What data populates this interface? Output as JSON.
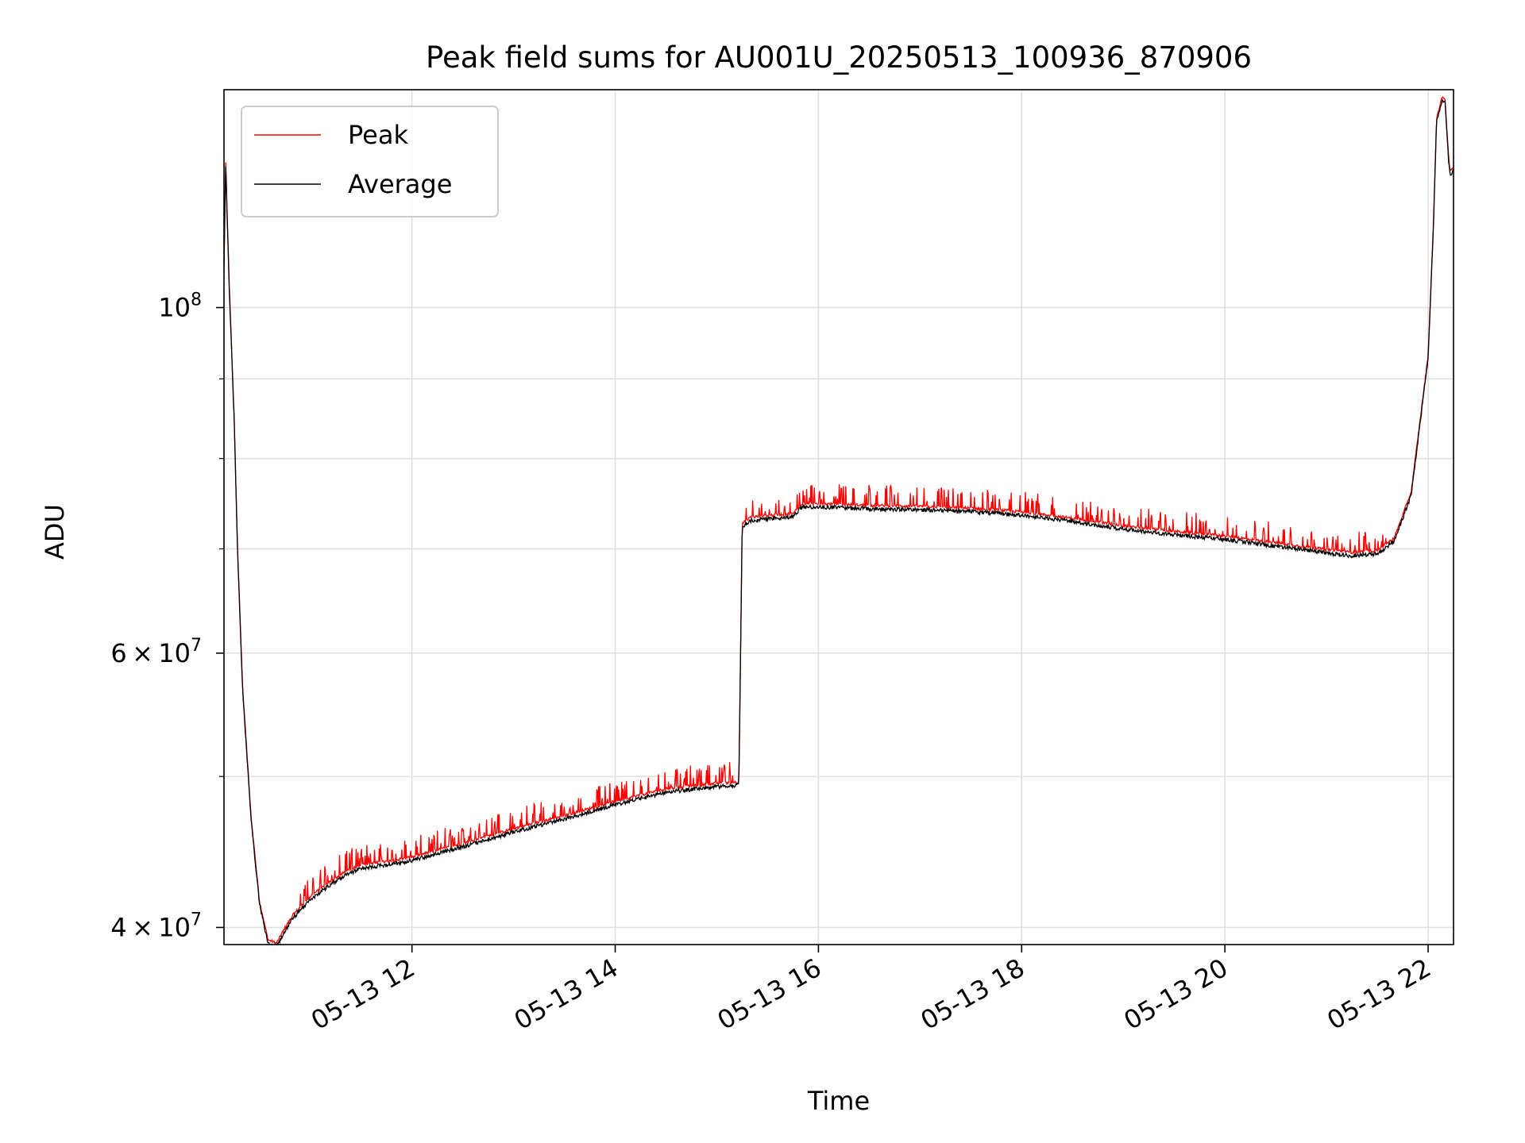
{
  "chart_data": {
    "type": "line",
    "title": "Peak field sums for AU001U_20250513_100936_870906",
    "xlabel": "Time",
    "ylabel": "ADU",
    "yscale": "log",
    "xlim": [
      "05-13 10:09",
      "05-13 22:15"
    ],
    "ylim": [
      39000000,
      138000000
    ],
    "grid": true,
    "legend_position": "top-left",
    "x_ticks": [
      {
        "value": "05-13 12:00",
        "label": "05-13 12"
      },
      {
        "value": "05-13 14:00",
        "label": "05-13 14"
      },
      {
        "value": "05-13 16:00",
        "label": "05-13 16"
      },
      {
        "value": "05-13 18:00",
        "label": "05-13 18"
      },
      {
        "value": "05-13 20:00",
        "label": "05-13 20"
      },
      {
        "value": "05-13 22:00",
        "label": "05-13 22"
      }
    ],
    "y_ticks": [
      {
        "value": 40000000,
        "base": "4 × 10",
        "exp": "7"
      },
      {
        "value": 60000000,
        "base": "6 × 10",
        "exp": "7"
      },
      {
        "value": 100000000,
        "base": "10",
        "exp": "8"
      }
    ],
    "y_minor_ticks": [
      50000000,
      70000000,
      80000000,
      90000000
    ],
    "series": [
      {
        "name": "Peak",
        "color": "#ff0000",
        "role": "peak"
      },
      {
        "name": "Average",
        "color": "#000000",
        "role": "average",
        "x": [
          "05-13 10:09",
          "05-13 10:10",
          "05-13 10:12",
          "05-13 10:15",
          "05-13 10:17",
          "05-13 10:20",
          "05-13 10:25",
          "05-13 10:30",
          "05-13 10:35",
          "05-13 10:40",
          "05-13 10:45",
          "05-13 10:50",
          "05-13 11:00",
          "05-13 11:10",
          "05-13 11:20",
          "05-13 11:30",
          "05-13 11:45",
          "05-13 12:00",
          "05-13 12:30",
          "05-13 13:00",
          "05-13 13:30",
          "05-13 14:00",
          "05-13 14:30",
          "05-13 15:00",
          "05-13 15:13",
          "05-13 15:15",
          "05-13 15:20",
          "05-13 15:30",
          "05-13 15:45",
          "05-13 15:50",
          "05-13 16:00",
          "05-13 16:30",
          "05-13 17:00",
          "05-13 17:30",
          "05-13 18:00",
          "05-13 18:30",
          "05-13 19:00",
          "05-13 19:30",
          "05-13 20:00",
          "05-13 20:30",
          "05-13 21:00",
          "05-13 21:15",
          "05-13 21:30",
          "05-13 21:40",
          "05-13 21:50",
          "05-13 22:00",
          "05-13 22:03",
          "05-13 22:05",
          "05-13 22:08",
          "05-13 22:10",
          "05-13 22:12",
          "05-13 22:13",
          "05-13 22:15"
        ],
        "values": [
          106000000,
          124000000,
          104000000,
          85000000,
          70000000,
          57000000,
          47000000,
          41500000,
          39200000,
          39000000,
          39900000,
          40700000,
          41800000,
          42600000,
          43300000,
          43800000,
          44000000,
          44300000,
          45200000,
          46200000,
          47100000,
          48100000,
          49000000,
          49400000,
          49500000,
          72500000,
          73200000,
          73400000,
          73600000,
          74700000,
          74700000,
          74500000,
          74400000,
          74200000,
          73800000,
          73100000,
          72300000,
          71700000,
          71200000,
          70500000,
          69800000,
          69500000,
          69700000,
          71000000,
          76000000,
          93000000,
          112000000,
          132000000,
          136000000,
          136000000,
          125000000,
          122000000,
          123000000
        ]
      }
    ]
  }
}
